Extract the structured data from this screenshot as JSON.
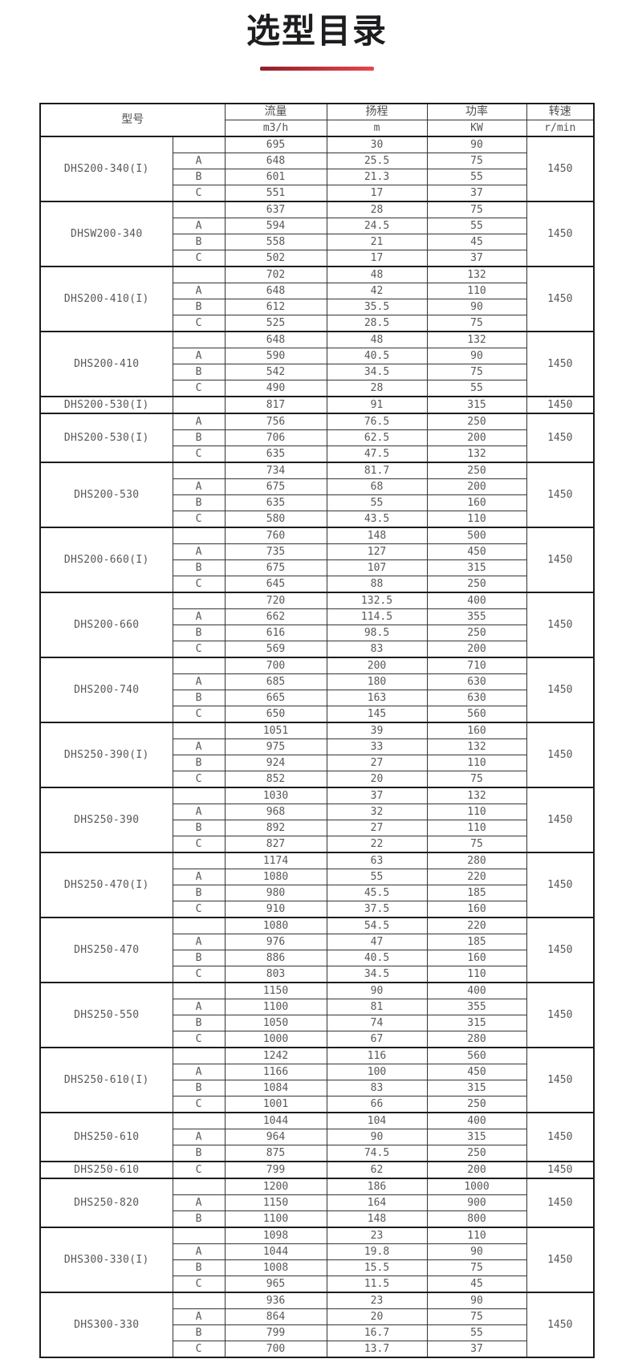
{
  "page": {
    "title": "选型目录",
    "accent_colors": [
      "#8f2029",
      "#e8454d"
    ]
  },
  "table": {
    "headers": {
      "model": "型号",
      "flow": "流量",
      "flow_unit": "m3/h",
      "head": "扬程",
      "head_unit": "m",
      "power": "功率",
      "power_unit": "KW",
      "speed": "转速",
      "speed_unit": "r/min"
    },
    "groups": [
      {
        "model": "DHS200-340(I)",
        "speed": "1450",
        "rows": [
          [
            "",
            "695",
            "30",
            "90"
          ],
          [
            "A",
            "648",
            "25.5",
            "75"
          ],
          [
            "B",
            "601",
            "21.3",
            "55"
          ],
          [
            "C",
            "551",
            "17",
            "37"
          ]
        ]
      },
      {
        "model": "DHSW200-340",
        "speed": "1450",
        "rows": [
          [
            "",
            "637",
            "28",
            "75"
          ],
          [
            "A",
            "594",
            "24.5",
            "55"
          ],
          [
            "B",
            "558",
            "21",
            "45"
          ],
          [
            "C",
            "502",
            "17",
            "37"
          ]
        ]
      },
      {
        "model": "DHS200-410(I)",
        "speed": "1450",
        "rows": [
          [
            "",
            "702",
            "48",
            "132"
          ],
          [
            "A",
            "648",
            "42",
            "110"
          ],
          [
            "B",
            "612",
            "35.5",
            "90"
          ],
          [
            "C",
            "525",
            "28.5",
            "75"
          ]
        ]
      },
      {
        "model": "DHS200-410",
        "speed": "1450",
        "rows": [
          [
            "",
            "648",
            "48",
            "132"
          ],
          [
            "A",
            "590",
            "40.5",
            "90"
          ],
          [
            "B",
            "542",
            "34.5",
            "75"
          ],
          [
            "C",
            "490",
            "28",
            "55"
          ]
        ]
      },
      {
        "model": "DHS200-530(I)",
        "speed": "1450",
        "rows": [
          [
            "",
            "817",
            "91",
            "315"
          ]
        ]
      },
      {
        "model": "DHS200-530(I)",
        "speed": "1450",
        "rows": [
          [
            "A",
            "756",
            "76.5",
            "250"
          ],
          [
            "B",
            "706",
            "62.5",
            "200"
          ],
          [
            "C",
            "635",
            "47.5",
            "132"
          ]
        ]
      },
      {
        "model": "DHS200-530",
        "speed": "1450",
        "rows": [
          [
            "",
            "734",
            "81.7",
            "250"
          ],
          [
            "A",
            "675",
            "68",
            "200"
          ],
          [
            "B",
            "635",
            "55",
            "160"
          ],
          [
            "C",
            "580",
            "43.5",
            "110"
          ]
        ]
      },
      {
        "model": "DHS200-660(I)",
        "speed": "1450",
        "rows": [
          [
            "",
            "760",
            "148",
            "500"
          ],
          [
            "A",
            "735",
            "127",
            "450"
          ],
          [
            "B",
            "675",
            "107",
            "315"
          ],
          [
            "C",
            "645",
            "88",
            "250"
          ]
        ]
      },
      {
        "model": "DHS200-660",
        "speed": "1450",
        "rows": [
          [
            "",
            "720",
            "132.5",
            "400"
          ],
          [
            "A",
            "662",
            "114.5",
            "355"
          ],
          [
            "B",
            "616",
            "98.5",
            "250"
          ],
          [
            "C",
            "569",
            "83",
            "200"
          ]
        ]
      },
      {
        "model": "DHS200-740",
        "speed": "1450",
        "rows": [
          [
            "",
            "700",
            "200",
            "710"
          ],
          [
            "A",
            "685",
            "180",
            "630"
          ],
          [
            "B",
            "665",
            "163",
            "630"
          ],
          [
            "C",
            "650",
            "145",
            "560"
          ]
        ]
      },
      {
        "model": "DHS250-390(I)",
        "speed": "1450",
        "rows": [
          [
            "",
            "1051",
            "39",
            "160"
          ],
          [
            "A",
            "975",
            "33",
            "132"
          ],
          [
            "B",
            "924",
            "27",
            "110"
          ],
          [
            "C",
            "852",
            "20",
            "75"
          ]
        ]
      },
      {
        "model": "DHS250-390",
        "speed": "1450",
        "rows": [
          [
            "",
            "1030",
            "37",
            "132"
          ],
          [
            "A",
            "968",
            "32",
            "110"
          ],
          [
            "B",
            "892",
            "27",
            "110"
          ],
          [
            "C",
            "827",
            "22",
            "75"
          ]
        ]
      },
      {
        "model": "DHS250-470(I)",
        "speed": "1450",
        "rows": [
          [
            "",
            "1174",
            "63",
            "280"
          ],
          [
            "A",
            "1080",
            "55",
            "220"
          ],
          [
            "B",
            "980",
            "45.5",
            "185"
          ],
          [
            "C",
            "910",
            "37.5",
            "160"
          ]
        ]
      },
      {
        "model": "DHS250-470",
        "speed": "1450",
        "rows": [
          [
            "",
            "1080",
            "54.5",
            "220"
          ],
          [
            "A",
            "976",
            "47",
            "185"
          ],
          [
            "B",
            "886",
            "40.5",
            "160"
          ],
          [
            "C",
            "803",
            "34.5",
            "110"
          ]
        ]
      },
      {
        "model": "DHS250-550",
        "speed": "1450",
        "rows": [
          [
            "",
            "1150",
            "90",
            "400"
          ],
          [
            "A",
            "1100",
            "81",
            "355"
          ],
          [
            "B",
            "1050",
            "74",
            "315"
          ],
          [
            "C",
            "1000",
            "67",
            "280"
          ]
        ]
      },
      {
        "model": "DHS250-610(I)",
        "speed": "1450",
        "rows": [
          [
            "",
            "1242",
            "116",
            "560"
          ],
          [
            "A",
            "1166",
            "100",
            "450"
          ],
          [
            "B",
            "1084",
            "83",
            "315"
          ],
          [
            "C",
            "1001",
            "66",
            "250"
          ]
        ]
      },
      {
        "model": "DHS250-610",
        "speed": "1450",
        "rows": [
          [
            "",
            "1044",
            "104",
            "400"
          ],
          [
            "A",
            "964",
            "90",
            "315"
          ],
          [
            "B",
            "875",
            "74.5",
            "250"
          ]
        ]
      },
      {
        "model": "DHS250-610",
        "speed": "1450",
        "rows": [
          [
            "C",
            "799",
            "62",
            "200"
          ]
        ]
      },
      {
        "model": "DHS250-820",
        "speed": "1450",
        "rows": [
          [
            "",
            "1200",
            "186",
            "1000"
          ],
          [
            "A",
            "1150",
            "164",
            "900"
          ],
          [
            "B",
            "1100",
            "148",
            "800"
          ]
        ]
      },
      {
        "model": "DHS300-330(I)",
        "speed": "1450",
        "rows": [
          [
            "",
            "1098",
            "23",
            "110"
          ],
          [
            "A",
            "1044",
            "19.8",
            "90"
          ],
          [
            "B",
            "1008",
            "15.5",
            "75"
          ],
          [
            "C",
            "965",
            "11.5",
            "45"
          ]
        ]
      },
      {
        "model": "DHS300-330",
        "speed": "1450",
        "rows": [
          [
            "",
            "936",
            "23",
            "90"
          ],
          [
            "A",
            "864",
            "20",
            "75"
          ],
          [
            "B",
            "799",
            "16.7",
            "55"
          ],
          [
            "C",
            "700",
            "13.7",
            "37"
          ]
        ]
      }
    ]
  }
}
